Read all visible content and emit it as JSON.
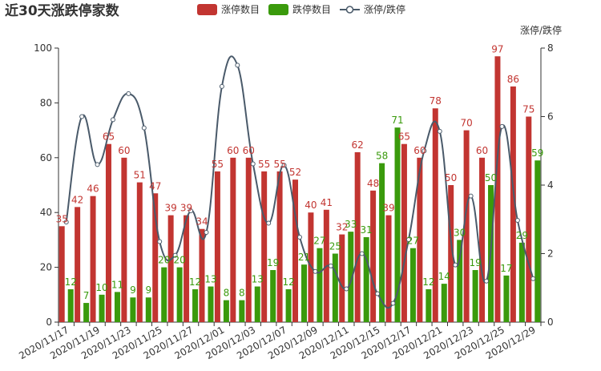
{
  "chart_data": {
    "type": "bar+line",
    "title": "近30天涨跌停家数",
    "x": [
      "2020/11/17",
      "2020/11/18",
      "2020/11/19",
      "2020/11/20",
      "2020/11/23",
      "2020/11/24",
      "2020/11/25",
      "2020/11/26",
      "2020/11/27",
      "2020/11/30",
      "2020/12/01",
      "2020/12/02",
      "2020/12/03",
      "2020/12/04",
      "2020/12/07",
      "2020/12/08",
      "2020/12/09",
      "2020/12/10",
      "2020/12/11",
      "2020/12/14",
      "2020/12/15",
      "2020/12/16",
      "2020/12/17",
      "2020/12/18",
      "2020/12/21",
      "2020/12/22",
      "2020/12/23",
      "2020/12/24",
      "2020/12/25",
      "2020/12/28",
      "2020/12/29"
    ],
    "x_tick_labels": [
      "2020/11/17",
      "2020/11/19",
      "2020/11/23",
      "2020/11/25",
      "2020/11/27",
      "2020/12/01",
      "2020/12/03",
      "2020/12/07",
      "2020/12/09",
      "2020/12/11",
      "2020/12/15",
      "2020/12/17",
      "2020/12/21",
      "2020/12/23",
      "2020/12/25",
      "2020/12/29"
    ],
    "x_tick_index": [
      0,
      2,
      4,
      6,
      8,
      10,
      12,
      14,
      16,
      18,
      20,
      22,
      24,
      26,
      28,
      30
    ],
    "series": [
      {
        "name": "涨停数目",
        "type": "bar",
        "color": "#c23531",
        "axis": "left",
        "values": [
          35,
          42,
          46,
          65,
          60,
          51,
          47,
          39,
          39,
          34,
          55,
          60,
          60,
          55,
          55,
          52,
          40,
          41,
          32,
          62,
          48,
          39,
          65,
          60,
          78,
          50,
          70,
          60,
          97,
          86,
          75
        ]
      },
      {
        "name": "跌停数目",
        "type": "bar",
        "color": "#3a9a0c",
        "axis": "left",
        "values": [
          12,
          7,
          10,
          11,
          9,
          9,
          20,
          20,
          12,
          13,
          8,
          8,
          13,
          19,
          12,
          21,
          27,
          25,
          33,
          31,
          58,
          71,
          27,
          12,
          14,
          30,
          19,
          50,
          17,
          29,
          59
        ]
      },
      {
        "name": "涨停/跌停",
        "type": "line",
        "color": "#4a5a6a",
        "axis": "right",
        "smooth": true,
        "values": [
          2.92,
          6.0,
          4.6,
          5.91,
          6.67,
          5.67,
          2.35,
          1.95,
          3.25,
          2.62,
          6.88,
          7.5,
          4.62,
          2.89,
          4.58,
          2.48,
          1.48,
          1.64,
          0.97,
          2.0,
          0.83,
          0.55,
          2.41,
          5.0,
          5.57,
          1.67,
          3.68,
          1.2,
          5.71,
          2.97,
          1.27
        ]
      }
    ],
    "yaxis_left": {
      "min": 0,
      "max": 100,
      "ticks": [
        0,
        20,
        40,
        60,
        80,
        100
      ]
    },
    "yaxis_right": {
      "name": "涨停/跌停",
      "min": 0,
      "max": 8,
      "ticks": [
        0,
        2,
        4,
        6,
        8
      ]
    },
    "legend_position": "top-center",
    "grid": false
  }
}
